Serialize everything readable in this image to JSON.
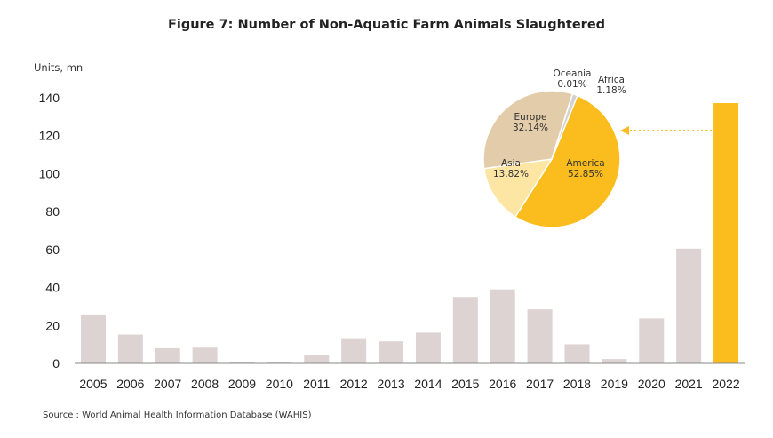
{
  "title": "Figure 7: Number of Non-Aquatic Farm Animals Slaughtered",
  "source": "Source : World Animal Health Information Database (WAHIS)",
  "colors": {
    "bar": "#ddd3d2",
    "highlight": "#fbbd1e",
    "axis": "#888888",
    "text": "#222222"
  },
  "chart_data": [
    {
      "type": "bar",
      "ylabel": "Units, mn",
      "ylim": [
        0,
        140
      ],
      "yticks": [
        0,
        20,
        40,
        60,
        80,
        100,
        120,
        140
      ],
      "grid": false,
      "categories": [
        "2005",
        "2006",
        "2007",
        "2008",
        "2009",
        "2010",
        "2011",
        "2012",
        "2013",
        "2014",
        "2015",
        "2016",
        "2017",
        "2018",
        "2019",
        "2020",
        "2021",
        "2022"
      ],
      "values": [
        25.8,
        15.2,
        8.0,
        8.3,
        0.8,
        0.7,
        4.2,
        12.8,
        11.6,
        16.2,
        35.0,
        39.0,
        28.5,
        10.1,
        2.3,
        23.7,
        60.5,
        137.2
      ],
      "highlight_category": "2022"
    },
    {
      "type": "pie",
      "slices": [
        {
          "label": "America",
          "value": 52.85,
          "text": "52.85%",
          "color": "#fbbd1e"
        },
        {
          "label": "Asia",
          "value": 13.82,
          "text": "13.82%",
          "color": "#fde6a3"
        },
        {
          "label": "Europe",
          "value": 32.14,
          "text": "32.14%",
          "color": "#e3cca9"
        },
        {
          "label": "Oceania",
          "value": 0.01,
          "text": "0.01%",
          "color": "#e3cca9"
        },
        {
          "label": "Africa",
          "value": 1.18,
          "text": "1.18%",
          "color": "#d3d0ce"
        }
      ]
    }
  ]
}
